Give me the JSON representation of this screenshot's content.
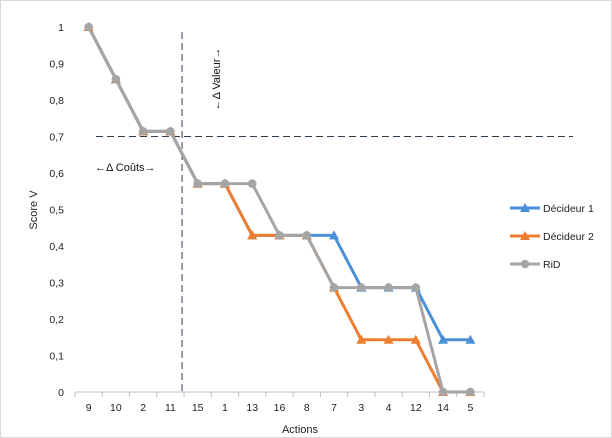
{
  "chart_data": {
    "type": "line",
    "title": "",
    "xlabel": "Actions",
    "ylabel": "Score V",
    "categories": [
      "9",
      "10",
      "2",
      "11",
      "15",
      "1",
      "13",
      "16",
      "8",
      "7",
      "3",
      "4",
      "12",
      "14",
      "5"
    ],
    "y_ticks": [
      "0",
      "0,1",
      "0,2",
      "0,3",
      "0,4",
      "0,5",
      "0,6",
      "0,7",
      "0,8",
      "0,9",
      "1"
    ],
    "ylim": [
      0,
      1
    ],
    "grid": false,
    "legend_position": "right",
    "series": [
      {
        "name": "Décideur 1",
        "color": "#4a90d9",
        "marker": "triangle",
        "values": [
          1,
          0.857,
          0.714,
          0.714,
          0.571,
          0.571,
          0.429,
          0.429,
          0.429,
          0.429,
          0.286,
          0.286,
          0.286,
          0.143,
          0.143
        ]
      },
      {
        "name": "Décideur 2",
        "color": "#ed7d31",
        "marker": "triangle",
        "values": [
          1,
          0.857,
          0.714,
          0.714,
          0.571,
          0.571,
          0.429,
          0.429,
          0.429,
          0.286,
          0.143,
          0.143,
          0.143,
          0,
          0
        ]
      },
      {
        "name": "RiD",
        "color": "#a5a5a5",
        "marker": "circle",
        "values": [
          1,
          0.857,
          0.714,
          0.714,
          0.571,
          0.571,
          0.571,
          0.429,
          0.429,
          0.286,
          0.286,
          0.286,
          0.286,
          0,
          0
        ]
      }
    ],
    "reference_lines": [
      {
        "orientation": "horizontal",
        "value": 0.7
      },
      {
        "orientation": "vertical",
        "between": [
          "11",
          "15"
        ]
      }
    ],
    "annotations": [
      {
        "text": "←Δ Coûts→"
      },
      {
        "text": "←Δ Valeur→"
      }
    ]
  }
}
